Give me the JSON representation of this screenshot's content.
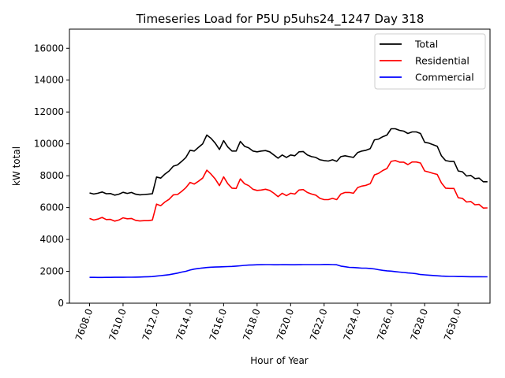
{
  "chart_data": {
    "type": "line",
    "title": "Timeseries Load for P5U p5uhs24_1247  Day 318",
    "xlabel": "Hour of Year",
    "ylabel": "kW total",
    "xlim": [
      7606.8,
      7631.9
    ],
    "ylim": [
      0,
      17200
    ],
    "grid": false,
    "legend_position": "top-right",
    "x_ticks": [
      7608,
      7610,
      7612,
      7614,
      7616,
      7618,
      7620,
      7622,
      7624,
      7626,
      7628,
      7630
    ],
    "x_tick_labels": [
      "7608.0",
      "7610.0",
      "7612.0",
      "7614.0",
      "7616.0",
      "7618.0",
      "7620.0",
      "7622.0",
      "7624.0",
      "7626.0",
      "7628.0",
      "7630.0"
    ],
    "y_ticks": [
      0,
      2000,
      4000,
      6000,
      8000,
      10000,
      12000,
      14000,
      16000
    ],
    "y_tick_labels": [
      "0",
      "2000",
      "4000",
      "6000",
      "8000",
      "10000",
      "12000",
      "14000",
      "16000"
    ],
    "x": [
      7608.0,
      7608.25,
      7608.5,
      7608.75,
      7609.0,
      7609.25,
      7609.5,
      7609.75,
      7610.0,
      7610.25,
      7610.5,
      7610.75,
      7611.0,
      7611.25,
      7611.5,
      7611.75,
      7612.0,
      7612.25,
      7612.5,
      7612.75,
      7613.0,
      7613.25,
      7613.5,
      7613.75,
      7614.0,
      7614.25,
      7614.5,
      7614.75,
      7615.0,
      7615.25,
      7615.5,
      7615.75,
      7616.0,
      7616.25,
      7616.5,
      7616.75,
      7617.0,
      7617.25,
      7617.5,
      7617.75,
      7618.0,
      7618.25,
      7618.5,
      7618.75,
      7619.0,
      7619.25,
      7619.5,
      7619.75,
      7620.0,
      7620.25,
      7620.5,
      7620.75,
      7621.0,
      7621.25,
      7621.5,
      7621.75,
      7622.0,
      7622.25,
      7622.5,
      7622.75,
      7623.0,
      7623.25,
      7623.5,
      7623.75,
      7624.0,
      7624.25,
      7624.5,
      7624.75,
      7625.0,
      7625.25,
      7625.5,
      7625.75,
      7626.0,
      7626.25,
      7626.5,
      7626.75,
      7627.0,
      7627.25,
      7627.5,
      7627.75,
      7628.0,
      7628.25,
      7628.5,
      7628.75,
      7629.0,
      7629.25,
      7629.5,
      7629.75,
      7630.0,
      7630.25,
      7630.5,
      7630.75,
      7631.0,
      7631.25,
      7631.5,
      7631.75
    ],
    "series": [
      {
        "name": "Total",
        "color": "#000000",
        "values": [
          6920,
          6850,
          6900,
          6980,
          6870,
          6880,
          6780,
          6840,
          6960,
          6890,
          6950,
          6840,
          6800,
          6820,
          6840,
          6870,
          7920,
          7850,
          8100,
          8300,
          8600,
          8680,
          8900,
          9150,
          9600,
          9550,
          9780,
          10000,
          10550,
          10350,
          10050,
          9650,
          10200,
          9800,
          9550,
          9550,
          10150,
          9850,
          9750,
          9550,
          9500,
          9550,
          9580,
          9500,
          9300,
          9100,
          9300,
          9150,
          9300,
          9250,
          9500,
          9520,
          9300,
          9200,
          9150,
          9000,
          8950,
          8920,
          9000,
          8900,
          9200,
          9250,
          9200,
          9150,
          9450,
          9550,
          9600,
          9700,
          10250,
          10300,
          10450,
          10550,
          10950,
          10950,
          10850,
          10800,
          10650,
          10750,
          10750,
          10650,
          10100,
          10050,
          9950,
          9850,
          9250,
          8950,
          8900,
          8900,
          8300,
          8250,
          7980,
          8020,
          7820,
          7850,
          7620,
          7620
        ]
      },
      {
        "name": "Residential",
        "color": "#ff0000",
        "values": [
          5320,
          5220,
          5280,
          5380,
          5250,
          5260,
          5150,
          5220,
          5360,
          5300,
          5320,
          5200,
          5160,
          5180,
          5180,
          5220,
          6220,
          6120,
          6350,
          6520,
          6800,
          6820,
          7020,
          7250,
          7580,
          7480,
          7650,
          7850,
          8350,
          8100,
          7800,
          7380,
          7930,
          7500,
          7220,
          7200,
          7800,
          7500,
          7380,
          7150,
          7080,
          7100,
          7150,
          7080,
          6900,
          6680,
          6900,
          6750,
          6900,
          6850,
          7100,
          7130,
          6950,
          6850,
          6780,
          6580,
          6500,
          6500,
          6580,
          6500,
          6850,
          6950,
          6950,
          6900,
          7250,
          7350,
          7400,
          7500,
          8050,
          8150,
          8330,
          8450,
          8900,
          8950,
          8850,
          8850,
          8700,
          8860,
          8860,
          8800,
          8300,
          8230,
          8150,
          8080,
          7550,
          7220,
          7200,
          7200,
          6620,
          6580,
          6350,
          6380,
          6180,
          6200,
          5970,
          5980
        ]
      },
      {
        "name": "Commercial",
        "color": "#0000ff",
        "values": [
          1620,
          1620,
          1615,
          1615,
          1620,
          1620,
          1625,
          1625,
          1625,
          1630,
          1630,
          1635,
          1640,
          1650,
          1660,
          1670,
          1700,
          1730,
          1760,
          1790,
          1840,
          1890,
          1950,
          2000,
          2080,
          2140,
          2180,
          2210,
          2240,
          2260,
          2270,
          2280,
          2290,
          2300,
          2310,
          2330,
          2350,
          2370,
          2390,
          2400,
          2410,
          2415,
          2420,
          2420,
          2410,
          2410,
          2420,
          2415,
          2410,
          2410,
          2415,
          2420,
          2420,
          2420,
          2420,
          2420,
          2430,
          2430,
          2420,
          2410,
          2330,
          2290,
          2250,
          2240,
          2220,
          2200,
          2200,
          2180,
          2150,
          2100,
          2060,
          2030,
          2010,
          1980,
          1950,
          1930,
          1900,
          1880,
          1850,
          1800,
          1780,
          1760,
          1740,
          1720,
          1700,
          1690,
          1680,
          1680,
          1670,
          1670,
          1665,
          1660,
          1660,
          1660,
          1655,
          1655
        ]
      }
    ]
  }
}
